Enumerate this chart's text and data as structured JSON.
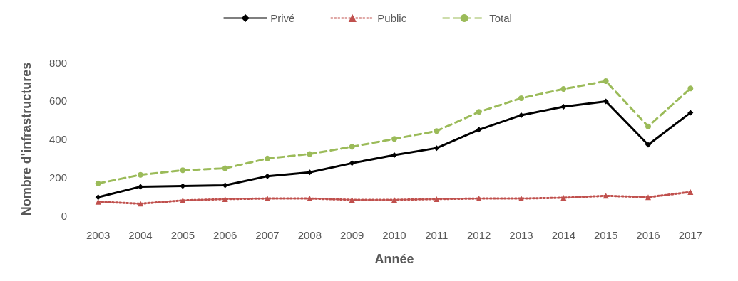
{
  "chart_data": {
    "type": "line",
    "xlabel": "Année",
    "ylabel": "Nombre d'infrastructures",
    "categories": [
      "2003",
      "2004",
      "2005",
      "2006",
      "2007",
      "2008",
      "2009",
      "2010",
      "2011",
      "2012",
      "2013",
      "2014",
      "2015",
      "2016",
      "2017"
    ],
    "series": [
      {
        "name": "Privé",
        "color": "#000000",
        "marker": "diamond",
        "line_style": "solid",
        "values": [
          96,
          151,
          154,
          158,
          206,
          226,
          274,
          316,
          353,
          449,
          525,
          569,
          597,
          370,
          538
        ]
      },
      {
        "name": "Public",
        "color": "#c0504d",
        "marker": "triangle",
        "line_style": "dotted",
        "values": [
          72,
          62,
          79,
          86,
          89,
          89,
          82,
          82,
          86,
          89,
          89,
          93,
          103,
          96,
          123
        ]
      },
      {
        "name": "Total",
        "color": "#9bbb59",
        "marker": "circle",
        "line_style": "dashed",
        "values": [
          168,
          213,
          237,
          247,
          298,
          322,
          360,
          401,
          442,
          542,
          614,
          662,
          703,
          466,
          665
        ]
      }
    ],
    "ylim": [
      0,
      800
    ],
    "yticks": [
      0,
      200,
      400,
      600,
      800
    ],
    "grid": false,
    "legend": "top"
  }
}
